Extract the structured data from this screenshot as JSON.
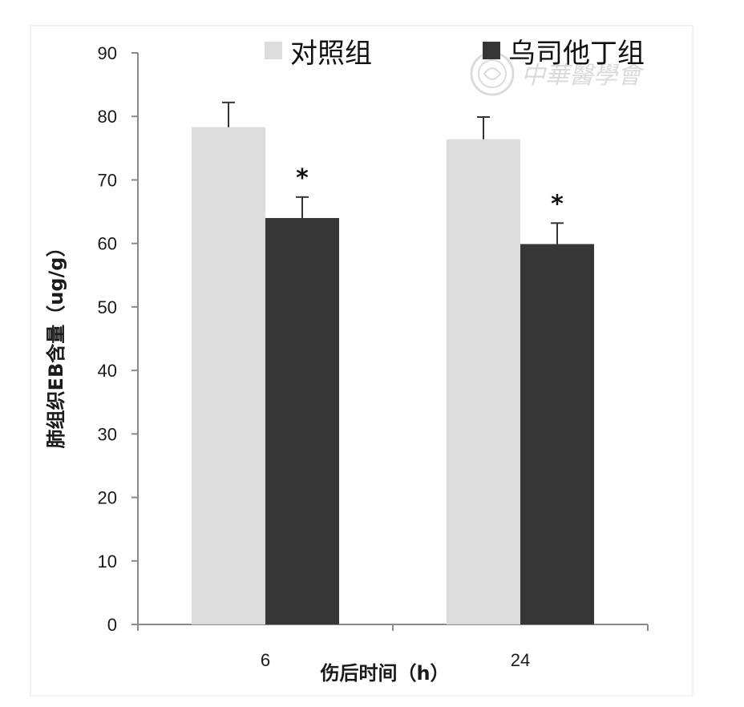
{
  "chart_data": {
    "type": "bar",
    "categories": [
      "6",
      "24"
    ],
    "series": [
      {
        "name": "对照组",
        "color": "#dcdcdc",
        "values": [
          78.3,
          76.4
        ],
        "errors": [
          3.9,
          3.5
        ],
        "markers": [
          "",
          ""
        ]
      },
      {
        "name": "乌司他丁组",
        "color": "#363636",
        "values": [
          64.0,
          59.9
        ],
        "errors": [
          3.3,
          3.3
        ],
        "markers": [
          "*",
          "*"
        ]
      }
    ],
    "xlabel": "伤后时间（h）",
    "ylabel": "肺组织EB含量（ug/g）",
    "ylim": [
      0,
      90
    ],
    "yticks": [
      "0",
      "10",
      "20",
      "30",
      "40",
      "50",
      "60",
      "70",
      "80",
      "90"
    ],
    "grid": false,
    "legend_position": "top"
  },
  "watermark": {
    "text": "中華醫學會",
    "emblem": "society-seal-icon"
  }
}
